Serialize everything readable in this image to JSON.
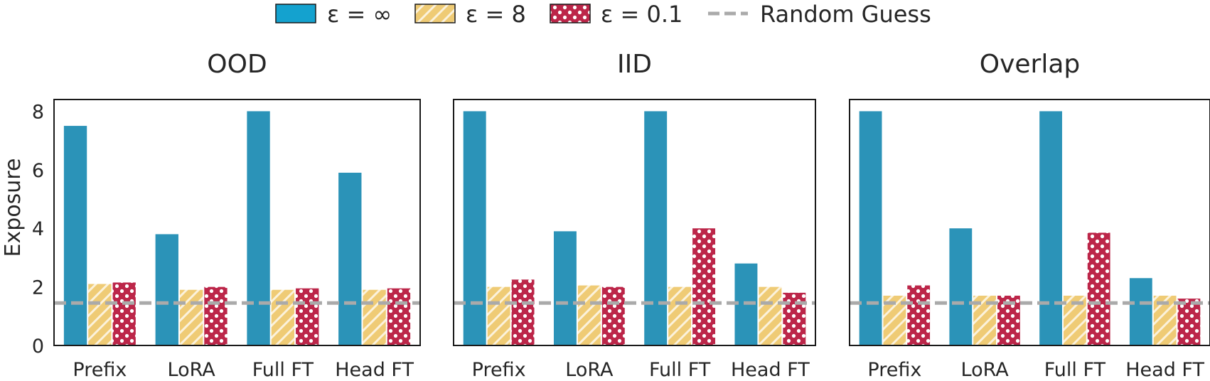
{
  "chart_data": {
    "type": "bar",
    "ylabel": "Exposure",
    "ylim": [
      0,
      8.4
    ],
    "yticks": [
      0,
      2,
      4,
      6,
      8
    ],
    "categories": [
      "Prefix",
      "LoRA",
      "Full FT",
      "Head FT"
    ],
    "baseline": {
      "name": "Random Guess",
      "value": 1.45,
      "color": "#aaaaaa"
    },
    "series_styles": [
      {
        "name": "ε = ∞",
        "color": "#2b93b8",
        "legend_color": "#14a2cf",
        "pattern": "solid"
      },
      {
        "name": "ε = 8",
        "color": "#efcb75",
        "legend_color": "#f3c866",
        "pattern": "hatch"
      },
      {
        "name": "ε = 0.1",
        "color": "#bc2649",
        "legend_color": "#d4173f",
        "pattern": "dots"
      }
    ],
    "legend_position": "top-center",
    "grid": false,
    "panels": [
      {
        "title": "OOD",
        "series": [
          [
            7.5,
            3.8,
            8.0,
            5.9
          ],
          [
            2.1,
            1.9,
            1.9,
            1.9
          ],
          [
            2.15,
            2.0,
            1.95,
            1.95
          ]
        ]
      },
      {
        "title": "IID",
        "series": [
          [
            8.0,
            3.9,
            8.0,
            2.8
          ],
          [
            2.0,
            2.05,
            2.0,
            2.0
          ],
          [
            2.25,
            2.0,
            4.0,
            1.8
          ]
        ]
      },
      {
        "title": "Overlap",
        "series": [
          [
            8.0,
            4.0,
            8.0,
            2.3
          ],
          [
            1.7,
            1.7,
            1.7,
            1.7
          ],
          [
            2.05,
            1.7,
            3.85,
            1.6
          ]
        ]
      }
    ]
  }
}
